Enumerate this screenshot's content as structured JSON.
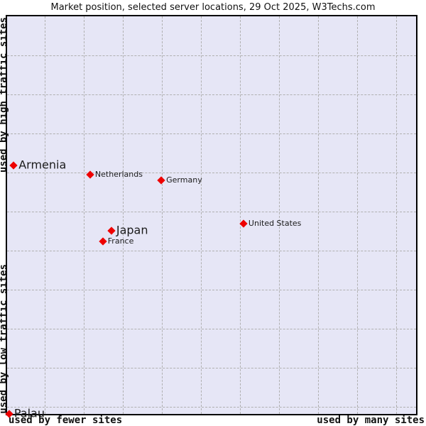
{
  "title": "Market position, selected server locations, 29 Oct 2025, W3Techs.com",
  "axes": {
    "y_top": "used by high traffic sites",
    "y_bottom": "used by low traffic sites",
    "x_left": "used by fewer sites",
    "x_right": "used by many sites"
  },
  "colors": {
    "point": "#ee0000",
    "plot_background": "#e6e6f6",
    "grid": "#b0b0b0"
  },
  "chart_data": {
    "type": "scatter",
    "title": "Market position, selected server locations, 29 Oct 2025, W3Techs.com",
    "x_axis": {
      "label_left": "used by fewer sites",
      "label_right": "used by many sites",
      "range": [
        0,
        1
      ],
      "numeric_ticks": false
    },
    "y_axis": {
      "label_top": "used by high traffic sites",
      "label_bottom": "used by low traffic sites",
      "range": [
        0,
        1
      ],
      "numeric_ticks": false
    },
    "grid": "dashed",
    "legend": "none",
    "marker": {
      "shape": "diamond",
      "color": "#ee0000"
    },
    "points": [
      {
        "label": "Armenia",
        "fx": 0.016,
        "fy": 0.375,
        "emphasis": "large"
      },
      {
        "label": "Netherlands",
        "fx": 0.203,
        "fy": 0.398,
        "emphasis": "small"
      },
      {
        "label": "Germany",
        "fx": 0.377,
        "fy": 0.413,
        "emphasis": "small"
      },
      {
        "label": "United States",
        "fx": 0.578,
        "fy": 0.521,
        "emphasis": "small"
      },
      {
        "label": "Japan",
        "fx": 0.255,
        "fy": 0.539,
        "emphasis": "large"
      },
      {
        "label": "France",
        "fx": 0.234,
        "fy": 0.566,
        "emphasis": "small"
      },
      {
        "label": "Palau",
        "fx": 0.005,
        "fy": 1.0,
        "emphasis": "large"
      }
    ]
  }
}
